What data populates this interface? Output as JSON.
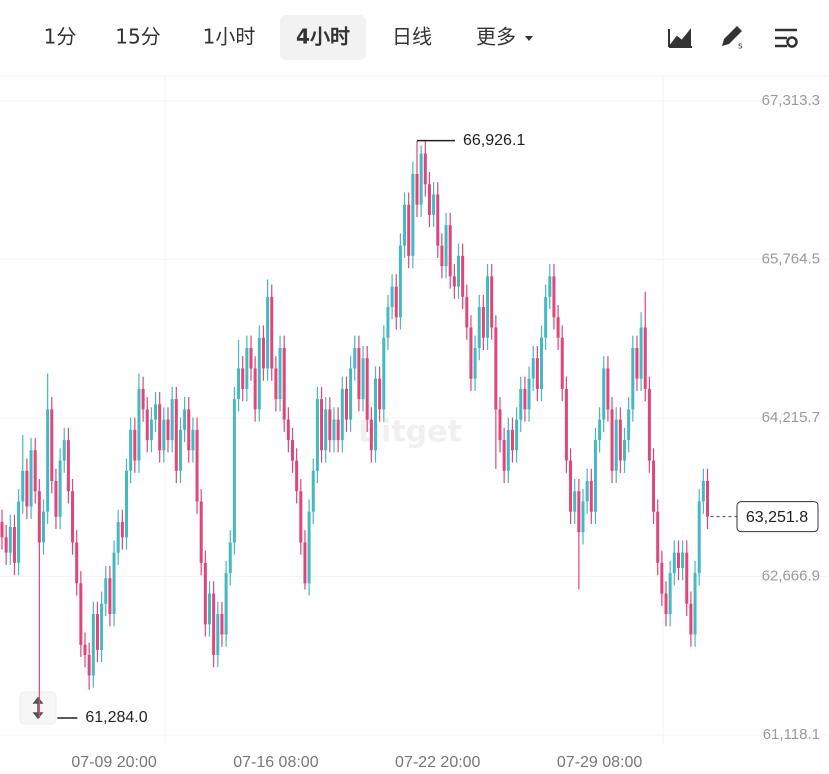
{
  "toolbar": {
    "tabs": [
      "1分",
      "15分",
      "1小时",
      "4小时",
      "日线",
      "更多"
    ],
    "selected": 3
  },
  "chart_data": {
    "type": "candlestick",
    "watermark": "Bitget",
    "categories": [
      null,
      null,
      null,
      null,
      null,
      null,
      null,
      null,
      null,
      null,
      null,
      null,
      null,
      null,
      null,
      null,
      null,
      null,
      null,
      null,
      null,
      null,
      null,
      null,
      null,
      null,
      null,
      "07-09 20:00",
      null,
      null,
      null,
      null,
      null,
      null,
      null,
      null,
      null,
      null,
      null,
      null,
      null,
      null,
      null,
      null,
      null,
      null,
      null,
      null,
      null,
      null,
      null,
      null,
      null,
      null,
      null,
      null,
      null,
      null,
      null,
      null,
      null,
      null,
      null,
      null,
      null,
      null,
      "07-16 08:00",
      null,
      null,
      null,
      null,
      null,
      null,
      null,
      null,
      null,
      null,
      null,
      null,
      null,
      null,
      null,
      null,
      null,
      null,
      null,
      null,
      null,
      null,
      null,
      null,
      null,
      null,
      null,
      null,
      null,
      null,
      null,
      null,
      null,
      null,
      null,
      null,
      null,
      null,
      "07-22 20:00",
      null,
      null,
      null,
      null,
      null,
      null,
      null,
      null,
      null,
      null,
      null,
      null,
      null,
      null,
      null,
      null,
      null,
      null,
      null,
      null,
      null,
      null,
      null,
      null,
      null,
      null,
      null,
      null,
      null,
      null,
      null,
      null,
      null,
      null,
      null,
      null,
      null,
      null,
      "07-29 08:00",
      null,
      null,
      null,
      null,
      null,
      null,
      null,
      null,
      null,
      null,
      null,
      null,
      null,
      null,
      null,
      null,
      null,
      null,
      null,
      null,
      null,
      null,
      null,
      null,
      null,
      null
    ],
    "series": [
      {
        "up_color": "#45b8c4",
        "down_color": "#e0457b",
        "open": [
          63200,
          63050,
          62900,
          63150,
          62800,
          63400,
          63700,
          63350,
          63900,
          63500,
          63000,
          63300,
          64300,
          63600,
          63250,
          63800,
          64000,
          63500,
          63000,
          62600,
          62000,
          61900,
          61700,
          62300,
          61950,
          62400,
          62650,
          62300,
          62900,
          63200,
          63050,
          63700,
          64100,
          63800,
          64500,
          64300,
          64000,
          64200,
          64350,
          63900,
          64200,
          64000,
          64400,
          63700,
          64100,
          64300,
          63900,
          64100,
          63400,
          62800,
          62200,
          62500,
          61900,
          62300,
          62100,
          62700,
          63000,
          64400,
          64700,
          64500,
          64900,
          64700,
          64300,
          65000,
          64700,
          65400,
          64700,
          64400,
          64900,
          64200,
          64000,
          63800,
          63500,
          63000,
          62600,
          63300,
          63700,
          64400,
          63900,
          64300,
          64000,
          64200,
          64000,
          64500,
          64200,
          64700,
          64900,
          64400,
          64800,
          64200,
          63900,
          64600,
          64300,
          65000,
          65300,
          65500,
          65200,
          65900,
          66300,
          65800,
          66600,
          66300,
          66800,
          66500,
          66200,
          66400,
          65900,
          65700,
          66100,
          65600,
          65500,
          65800,
          65400,
          65100,
          64600,
          64900,
          65300,
          65000,
          65600,
          65100,
          64300,
          64000,
          63700,
          64100,
          63900,
          64200,
          64500,
          64300,
          64600,
          64800,
          64500,
          65000,
          65400,
          65600,
          65200,
          65000,
          64500,
          63800,
          63300,
          63500,
          63100,
          63400,
          63600,
          63300,
          64000,
          64200,
          64700,
          64300,
          63700,
          64200,
          63800,
          64000,
          64300,
          64900,
          64600,
          65100,
          64500,
          63800,
          63300,
          62800,
          62500,
          62300,
          62700,
          62900,
          62750,
          62900,
          62400,
          62100,
          62700,
          63400,
          63600
        ],
        "high": [
          63320,
          63170,
          63270,
          63270,
          63520,
          64050,
          63820,
          64020,
          64020,
          63620,
          63420,
          64650,
          64420,
          63720,
          63920,
          64120,
          64120,
          63620,
          63120,
          62720,
          62120,
          62020,
          62420,
          62420,
          62520,
          62770,
          62770,
          63020,
          63320,
          63320,
          63820,
          64220,
          64220,
          64650,
          64620,
          64420,
          64320,
          64470,
          64470,
          64320,
          64320,
          64520,
          64520,
          64220,
          64420,
          64420,
          64220,
          64220,
          63520,
          62920,
          62620,
          62620,
          62420,
          62420,
          62820,
          63120,
          64520,
          64980,
          64820,
          65020,
          65020,
          64820,
          65120,
          65120,
          65570,
          65520,
          64820,
          65020,
          65020,
          64320,
          64120,
          63920,
          63620,
          63120,
          63420,
          63820,
          64520,
          64520,
          64420,
          64420,
          64320,
          64320,
          64620,
          64620,
          64820,
          65020,
          65020,
          64920,
          64920,
          64320,
          64720,
          64720,
          65120,
          65420,
          65620,
          65620,
          66020,
          66420,
          66420,
          66720,
          66926.1,
          66880,
          66920,
          66620,
          66520,
          66520,
          66020,
          66220,
          66220,
          65720,
          65920,
          65920,
          65520,
          65220,
          65020,
          65420,
          65420,
          65720,
          65720,
          65220,
          64420,
          64120,
          64220,
          64220,
          64320,
          64620,
          64620,
          64720,
          64920,
          64920,
          65120,
          65520,
          65720,
          65720,
          65320,
          65120,
          64620,
          63920,
          63620,
          63620,
          63520,
          63720,
          63720,
          64120,
          64320,
          64820,
          64820,
          64420,
          64320,
          64320,
          64120,
          64420,
          65020,
          65020,
          65250,
          65450,
          64620,
          63920,
          63420,
          62920,
          62620,
          62820,
          63020,
          63020,
          63020,
          63020,
          62520,
          62820,
          63520,
          63720,
          63720
        ],
        "low": [
          62930,
          62780,
          62780,
          62680,
          62680,
          63280,
          63230,
          63230,
          63380,
          61284.0,
          62880,
          63180,
          63480,
          63130,
          63130,
          63680,
          63380,
          62880,
          62480,
          61880,
          61780,
          61560,
          61580,
          61830,
          61830,
          62280,
          62180,
          62180,
          62780,
          62930,
          62930,
          63580,
          63680,
          63680,
          64180,
          63880,
          63880,
          64080,
          63780,
          63780,
          63880,
          63880,
          63580,
          63580,
          63980,
          63780,
          63780,
          63280,
          62680,
          62080,
          62080,
          61780,
          61780,
          61980,
          61980,
          62580,
          62880,
          64280,
          64380,
          64380,
          64580,
          64180,
          64180,
          64580,
          64580,
          64580,
          64280,
          64280,
          64080,
          63880,
          63680,
          63380,
          62880,
          62540,
          62480,
          63180,
          63580,
          63780,
          63780,
          63880,
          63880,
          63880,
          63880,
          64080,
          64080,
          64580,
          64280,
          64280,
          64080,
          63780,
          63780,
          64180,
          64180,
          64880,
          65180,
          65080,
          65080,
          65780,
          65680,
          65680,
          66180,
          66180,
          66380,
          66080,
          66080,
          65780,
          65580,
          65580,
          65480,
          65380,
          65380,
          65280,
          64980,
          64480,
          64480,
          64780,
          64880,
          64880,
          64980,
          63720,
          63880,
          63580,
          63580,
          63780,
          63780,
          64080,
          64180,
          64180,
          64480,
          64380,
          64380,
          64880,
          65280,
          65080,
          64880,
          64380,
          63680,
          63180,
          63180,
          62540,
          62980,
          63280,
          63180,
          63180,
          63880,
          64080,
          64180,
          63580,
          63580,
          63680,
          63680,
          63880,
          64180,
          64480,
          64480,
          64380,
          63680,
          63180,
          62680,
          62380,
          62180,
          62180,
          62580,
          62630,
          62630,
          62280,
          61980,
          61980,
          62580,
          63280,
          63130
        ],
        "close": [
          63050,
          62900,
          63150,
          62800,
          63400,
          63700,
          63350,
          63900,
          63500,
          63000,
          63300,
          64300,
          63600,
          63250,
          63800,
          64000,
          63500,
          63000,
          62600,
          62000,
          61900,
          61700,
          62300,
          61950,
          62400,
          62650,
          62300,
          62900,
          63200,
          63050,
          63700,
          64100,
          63800,
          64500,
          64300,
          64000,
          64200,
          64350,
          63900,
          64200,
          64000,
          64400,
          63700,
          64100,
          64300,
          63900,
          64100,
          63400,
          62800,
          62200,
          62500,
          61900,
          62300,
          62100,
          62700,
          63000,
          64400,
          64700,
          64500,
          64900,
          64700,
          64300,
          65000,
          64700,
          65400,
          64700,
          64400,
          64900,
          64200,
          64000,
          63800,
          63500,
          63000,
          62600,
          63300,
          63700,
          64400,
          63900,
          64300,
          64000,
          64200,
          64000,
          64500,
          64200,
          64700,
          64900,
          64400,
          64800,
          64200,
          63900,
          64600,
          64300,
          65000,
          65300,
          65500,
          65200,
          65900,
          66300,
          65800,
          66600,
          66300,
          66800,
          66500,
          66200,
          66400,
          65900,
          65700,
          66100,
          65600,
          65500,
          65800,
          65400,
          65100,
          64600,
          64900,
          65300,
          65000,
          65600,
          65100,
          64300,
          64000,
          63700,
          64100,
          63900,
          64200,
          64500,
          64300,
          64600,
          64800,
          64500,
          65000,
          65400,
          65600,
          65200,
          65000,
          64500,
          63800,
          63300,
          63500,
          63100,
          63400,
          63600,
          63300,
          64000,
          64200,
          64700,
          64300,
          63700,
          64200,
          63800,
          64000,
          64300,
          64900,
          64600,
          65100,
          64500,
          63800,
          63300,
          62800,
          62500,
          62300,
          62700,
          62900,
          62750,
          62900,
          62400,
          62100,
          62700,
          63400,
          63600,
          63251.8
        ]
      }
    ],
    "ylim": [
      61118.1,
      67313.3
    ],
    "yticks": [
      {
        "value": 61118.1,
        "label": "61,118.1"
      },
      {
        "value": 62666.9,
        "label": "62,666.9"
      },
      {
        "value": 64215.7,
        "label": "64,215.7"
      },
      {
        "value": 65764.5,
        "label": "65,764.5"
      },
      {
        "value": 67313.3,
        "label": "67,313.3"
      }
    ],
    "annotations": {
      "high_label": "66,926.1",
      "low_label": "61,284.0",
      "last_label": "63,251.8"
    }
  }
}
